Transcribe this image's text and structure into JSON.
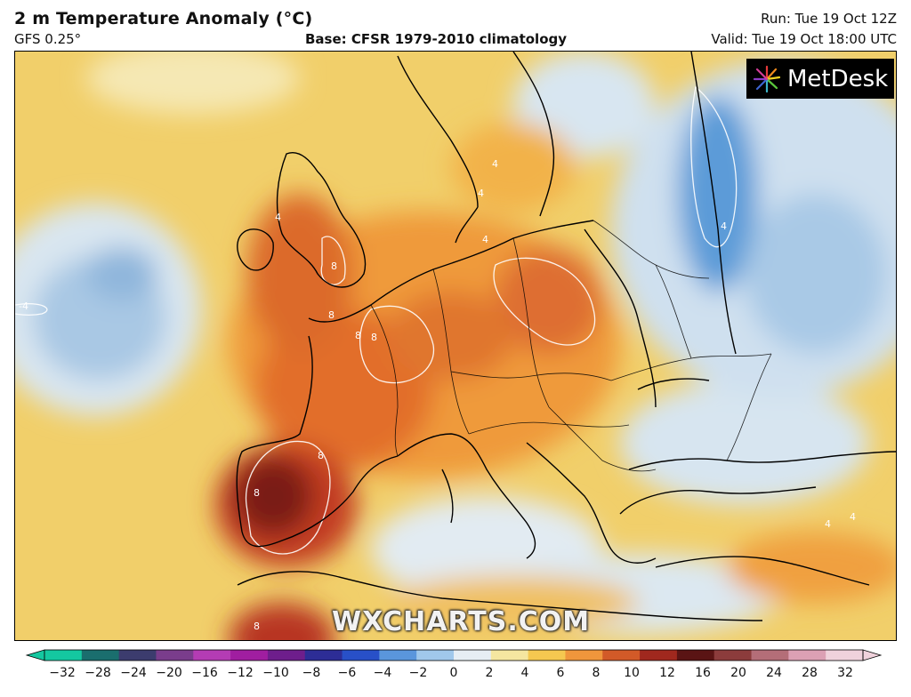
{
  "header": {
    "title": "2 m Temperature Anomaly (°C)",
    "model": "GFS 0.25°",
    "base": "Base: CFSR 1979-2010 climatology",
    "run": "Run: Tue 19 Oct 12Z",
    "valid": "Valid: Tue 19 Oct 18:00 UTC"
  },
  "logo": {
    "text": "MetDesk",
    "icon": "metdesk-burst-icon"
  },
  "watermark": "WXCHARTS.COM",
  "contour_labels": [
    "8",
    "8",
    "8",
    "8",
    "8",
    "8",
    "8",
    "4",
    "4",
    "4",
    "4",
    "4",
    "4",
    "-4",
    "4"
  ],
  "colorbar": {
    "ticks": [
      "−32",
      "−28",
      "−24",
      "−20",
      "−16",
      "−12",
      "−10",
      "−8",
      "−6",
      "−4",
      "−2",
      "0",
      "2",
      "4",
      "6",
      "8",
      "10",
      "12",
      "16",
      "20",
      "24",
      "28",
      "32"
    ],
    "colors": [
      "#14c8a0",
      "#1a6e6e",
      "#3c3c6e",
      "#7a3d8c",
      "#b43cb4",
      "#a01ea0",
      "#6e1e8c",
      "#2d2d96",
      "#2850c8",
      "#5a96dc",
      "#a0c8eb",
      "#e6eef4",
      "#f5e6a0",
      "#f5c850",
      "#f0963c",
      "#d25a28",
      "#a0281e",
      "#5a1414",
      "#8c3c3c",
      "#b46e78",
      "#dca0b4",
      "#f0d2dc"
    ],
    "unit": "°C"
  }
}
